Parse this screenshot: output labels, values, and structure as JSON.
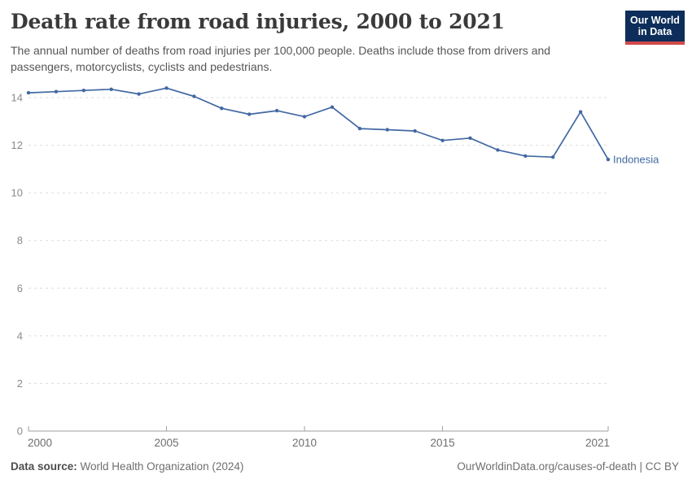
{
  "header": {
    "title": "Death rate from road injuries, 2000 to 2021",
    "subtitle": "The annual number of deaths from road injuries per 100,000 people. Deaths include those from drivers and passengers, motorcyclists, cyclists and pedestrians.",
    "logo": {
      "line1": "Our World",
      "line2": "in Data",
      "bg_color": "#0d2e5a",
      "accent_color": "#d0494a"
    }
  },
  "chart_data": {
    "type": "line",
    "title": "Death rate from road injuries, 2000 to 2021",
    "x": [
      2000,
      2001,
      2002,
      2003,
      2004,
      2005,
      2006,
      2007,
      2008,
      2009,
      2010,
      2011,
      2012,
      2013,
      2014,
      2015,
      2016,
      2017,
      2018,
      2019,
      2020,
      2021
    ],
    "series": [
      {
        "name": "Indonesia",
        "color": "#4268a3",
        "values": [
          14.2,
          14.25,
          14.3,
          14.35,
          14.15,
          14.4,
          14.05,
          13.55,
          13.3,
          13.45,
          13.2,
          13.6,
          12.7,
          12.65,
          12.6,
          12.2,
          12.3,
          11.8,
          11.55,
          11.5,
          13.4,
          11.4
        ]
      }
    ],
    "xlabel": "",
    "ylabel": "",
    "xlim": [
      2000,
      2021
    ],
    "ylim": [
      0,
      14.5
    ],
    "x_ticks": [
      2000,
      2005,
      2010,
      2015,
      2021
    ],
    "y_ticks": [
      0,
      2,
      4,
      6,
      8,
      10,
      12,
      14
    ],
    "grid": "horizontal-dashed",
    "legend_position": "end-of-line-label",
    "grid_color": "#dcdcdc",
    "axis_color": "#9e9e9e",
    "tick_label_color": "#8a8a8a"
  },
  "footer": {
    "source_label": "Data source:",
    "source_value": "World Health Organization (2024)",
    "credit": "OurWorldinData.org/causes-of-death | CC BY"
  }
}
